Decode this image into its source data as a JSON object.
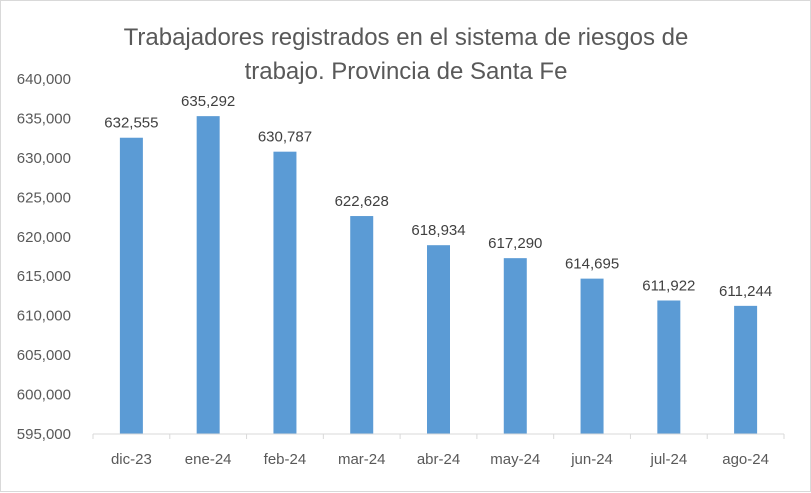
{
  "chart_data": {
    "type": "bar",
    "title_lines": [
      "Trabajadores registrados en el sistema de riesgos de",
      "trabajo. Provincia de Santa Fe"
    ],
    "categories": [
      "dic-23",
      "ene-24",
      "feb-24",
      "mar-24",
      "abr-24",
      "may-24",
      "jun-24",
      "jul-24",
      "ago-24"
    ],
    "values": [
      632555,
      635292,
      630787,
      622628,
      618934,
      617290,
      614695,
      611922,
      611244
    ],
    "value_labels": [
      "632,555",
      "635,292",
      "630,787",
      "622,628",
      "618,934",
      "617,290",
      "614,695",
      "611,922",
      "611,244"
    ],
    "y_ticks": [
      595000,
      600000,
      605000,
      610000,
      615000,
      620000,
      625000,
      630000,
      635000,
      640000
    ],
    "y_tick_labels": [
      "595,000",
      "600,000",
      "605,000",
      "610,000",
      "615,000",
      "620,000",
      "625,000",
      "630,000",
      "635,000",
      "640,000"
    ],
    "ylim": [
      595000,
      640000
    ],
    "xlabel": "",
    "ylabel": "",
    "grid": false,
    "bar_color": "#5b9bd5"
  }
}
